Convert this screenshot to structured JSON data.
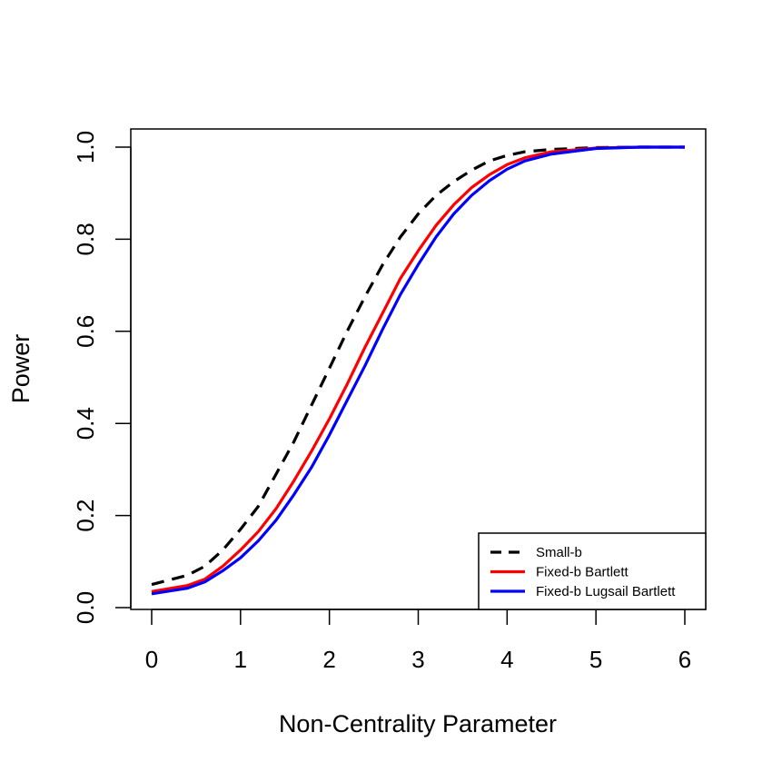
{
  "chart_data": {
    "type": "line",
    "title": "",
    "xlabel": "Non-Centrality Parameter",
    "ylabel": "Power",
    "xlim": [
      0,
      6
    ],
    "ylim": [
      0,
      1
    ],
    "x_ticks": [
      "0",
      "1",
      "2",
      "3",
      "4",
      "5",
      "6"
    ],
    "y_ticks": [
      "0.0",
      "0.2",
      "0.4",
      "0.6",
      "0.8",
      "1.0"
    ],
    "grid": false,
    "legend_position": "bottom-right",
    "x": [
      0,
      0.4,
      0.6,
      0.8,
      1.0,
      1.2,
      1.4,
      1.6,
      1.8,
      2.0,
      2.2,
      2.4,
      2.6,
      2.8,
      3.0,
      3.2,
      3.4,
      3.6,
      3.8,
      4.0,
      4.2,
      4.5,
      5.0,
      5.5,
      6.0
    ],
    "series": [
      {
        "name": "Small-b",
        "color": "#000000",
        "dash": "dashed",
        "values": [
          0.05,
          0.07,
          0.09,
          0.125,
          0.17,
          0.22,
          0.29,
          0.36,
          0.44,
          0.52,
          0.6,
          0.675,
          0.745,
          0.805,
          0.855,
          0.895,
          0.925,
          0.95,
          0.97,
          0.982,
          0.99,
          0.995,
          0.999,
          1.0,
          1.0
        ]
      },
      {
        "name": "Fixed-b Bartlett",
        "color": "#ff0000",
        "dash": "solid",
        "values": [
          0.035,
          0.048,
          0.062,
          0.09,
          0.125,
          0.165,
          0.215,
          0.275,
          0.34,
          0.41,
          0.485,
          0.565,
          0.64,
          0.715,
          0.775,
          0.83,
          0.875,
          0.912,
          0.94,
          0.962,
          0.977,
          0.99,
          0.998,
          1.0,
          1.0
        ]
      },
      {
        "name": "Fixed-b Lugsail Bartlett",
        "color": "#0000ff",
        "dash": "solid",
        "values": [
          0.03,
          0.042,
          0.056,
          0.08,
          0.108,
          0.145,
          0.19,
          0.245,
          0.305,
          0.375,
          0.45,
          0.525,
          0.605,
          0.68,
          0.745,
          0.805,
          0.855,
          0.895,
          0.927,
          0.952,
          0.97,
          0.985,
          0.997,
          1.0,
          1.0
        ]
      }
    ]
  }
}
